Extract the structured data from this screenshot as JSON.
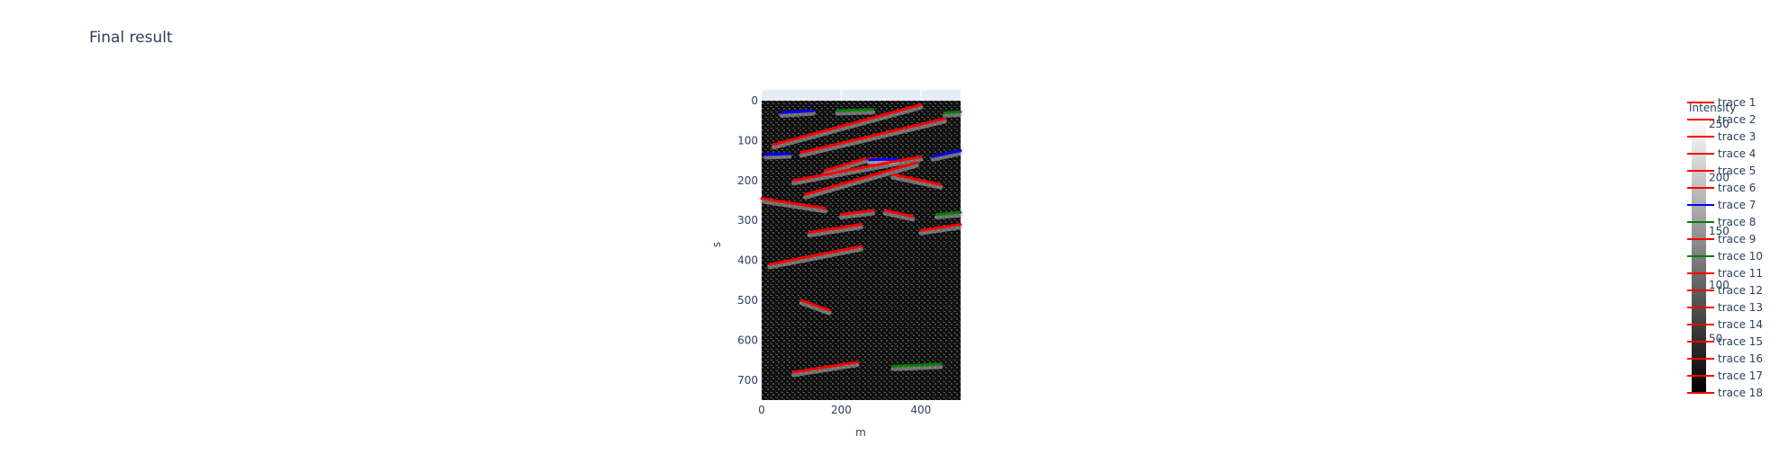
{
  "chart_data": {
    "type": "heatmap",
    "title": "Final result",
    "xlabel": "m",
    "ylabel": "s",
    "xlim": [
      0,
      500
    ],
    "ylim": [
      750,
      0
    ],
    "x_ticks": [
      0,
      200,
      400
    ],
    "y_ticks": [
      0,
      100,
      200,
      300,
      400,
      500,
      600,
      700
    ],
    "colorbar": {
      "title": "Intensity",
      "range": [
        0,
        255
      ],
      "ticks": [
        50,
        100,
        150,
        200,
        250
      ],
      "colorscale": [
        "#000000",
        "#ffffff"
      ]
    },
    "series": [
      {
        "name": "trace 1",
        "color": "#ff0000",
        "x": [
          30,
          400
        ],
        "y": [
          110,
          10
        ]
      },
      {
        "name": "trace 2",
        "color": "#ff0000",
        "x": [
          100,
          460
        ],
        "y": [
          130,
          45
        ]
      },
      {
        "name": "trace 3",
        "color": "#ff0000",
        "x": [
          80,
          400
        ],
        "y": [
          200,
          140
        ]
      },
      {
        "name": "trace 4",
        "color": "#ff0000",
        "x": [
          110,
          390
        ],
        "y": [
          235,
          155
        ]
      },
      {
        "name": "trace 5",
        "color": "#ff0000",
        "x": [
          160,
          260
        ],
        "y": [
          175,
          145
        ]
      },
      {
        "name": "trace 6",
        "color": "#ff0000",
        "x": [
          0,
          160
        ],
        "y": [
          245,
          270
        ]
      },
      {
        "name": "trace 7",
        "color": "#0000ff",
        "x": [
          50,
          130
        ],
        "y": [
          30,
          25
        ]
      },
      {
        "name": "trace 8",
        "color": "#008000",
        "x": [
          190,
          280
        ],
        "y": [
          25,
          22
        ]
      },
      {
        "name": "trace 9",
        "color": "#ff0000",
        "x": [
          200,
          280
        ],
        "y": [
          285,
          275
        ]
      },
      {
        "name": "trace 10",
        "color": "#008000",
        "x": [
          440,
          500
        ],
        "y": [
          285,
          280
        ]
      },
      {
        "name": "trace 11",
        "color": "#ff0000",
        "x": [
          120,
          250
        ],
        "y": [
          330,
          310
        ]
      },
      {
        "name": "trace 12",
        "color": "#ff0000",
        "x": [
          20,
          250
        ],
        "y": [
          410,
          365
        ]
      },
      {
        "name": "trace 13",
        "color": "#ff0000",
        "x": [
          400,
          500
        ],
        "y": [
          325,
          310
        ]
      },
      {
        "name": "trace 14",
        "color": "#ff0000",
        "x": [
          330,
          450
        ],
        "y": [
          185,
          210
        ]
      },
      {
        "name": "trace 15",
        "color": "#ff0000",
        "x": [
          100,
          170
        ],
        "y": [
          500,
          525
        ]
      },
      {
        "name": "trace 16",
        "color": "#ff0000",
        "x": [
          80,
          240
        ],
        "y": [
          680,
          655
        ]
      },
      {
        "name": "trace 17",
        "color": "#ff0000",
        "x": [
          310,
          380
        ],
        "y": [
          275,
          290
        ]
      },
      {
        "name": "trace 18",
        "color": "#ff0000",
        "x": [
          270,
          330
        ],
        "y": [
          145,
          148
        ]
      }
    ],
    "extra_segments": [
      {
        "color": "#0000ff",
        "x": [
          10,
          70
        ],
        "y": [
          135,
          133
        ]
      },
      {
        "color": "#0000ff",
        "x": [
          270,
          340
        ],
        "y": [
          148,
          146
        ]
      },
      {
        "color": "#0000ff",
        "x": [
          430,
          500
        ],
        "y": [
          140,
          125
        ]
      },
      {
        "color": "#008000",
        "x": [
          460,
          500
        ],
        "y": [
          30,
          28
        ]
      },
      {
        "color": "#008000",
        "x": [
          330,
          450
        ],
        "y": [
          665,
          660
        ]
      }
    ],
    "legend_position": "right"
  }
}
